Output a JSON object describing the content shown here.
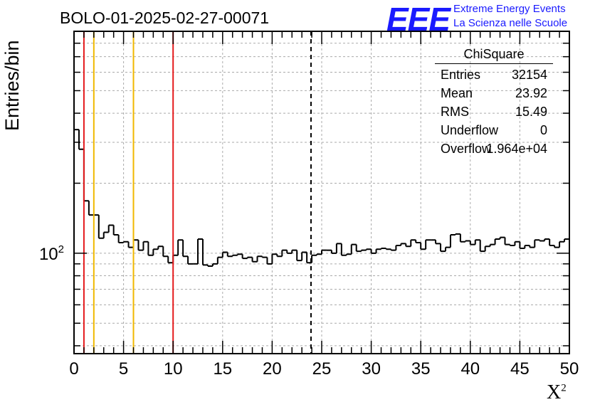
{
  "title": "BOLO-01-2025-02-27-00071",
  "logo": {
    "text": "EEE",
    "line1": "Extreme Energy Events",
    "line2": "La Scienza nelle Scuole",
    "color": "#1a1aff"
  },
  "stats_box": {
    "name": "ChiSquare",
    "rows": [
      {
        "label": "Entries",
        "value": "32154"
      },
      {
        "label": "Mean",
        "value": "23.92"
      },
      {
        "label": "RMS",
        "value": "15.49"
      },
      {
        "label": "Underflow",
        "value": "0"
      },
      {
        "label": "Overflow",
        "value": "1.964e+04"
      }
    ]
  },
  "chart_data": {
    "type": "histogram",
    "title": "BOLO-01-2025-02-27-00071",
    "xlabel": "X",
    "xlabel_superscript": "2",
    "ylabel": "Entries/bin",
    "x_range": [
      0,
      50
    ],
    "y_scale": "log",
    "y_range": [
      37,
      900
    ],
    "y_tick_label": "10",
    "y_tick_label_exp": "2",
    "x_ticks": [
      0,
      5,
      10,
      15,
      20,
      25,
      30,
      35,
      40,
      45,
      50
    ],
    "bin_width": 0.5,
    "values": [
      340,
      280,
      168,
      146,
      146,
      116,
      123,
      132,
      120,
      111,
      112,
      106,
      114,
      103,
      112,
      98,
      104,
      107,
      97,
      91,
      98,
      114,
      97,
      90,
      90,
      115,
      89,
      88,
      90,
      96,
      101,
      97,
      98,
      99,
      95,
      96,
      92,
      97,
      96,
      90,
      99,
      97,
      103,
      100,
      103,
      93,
      101,
      91,
      98,
      99,
      103,
      103,
      100,
      110,
      98,
      99,
      109,
      102,
      103,
      104,
      100,
      104,
      105,
      104,
      103,
      108,
      110,
      107,
      114,
      111,
      104,
      114,
      114,
      110,
      102,
      106,
      120,
      121,
      112,
      113,
      109,
      114,
      102,
      107,
      109,
      115,
      117,
      109,
      108,
      112,
      105,
      108,
      106,
      114,
      113,
      115,
      108,
      106,
      112,
      115
    ],
    "vertical_lines": [
      {
        "x": 1,
        "color": "#e41a1c",
        "style": "solid"
      },
      {
        "x": 2,
        "color": "#f0b800",
        "style": "solid"
      },
      {
        "x": 6,
        "color": "#f0b800",
        "style": "solid"
      },
      {
        "x": 10,
        "color": "#e41a1c",
        "style": "solid"
      },
      {
        "x": 23.92,
        "color": "#000000",
        "style": "dashed"
      }
    ],
    "grid": true
  }
}
